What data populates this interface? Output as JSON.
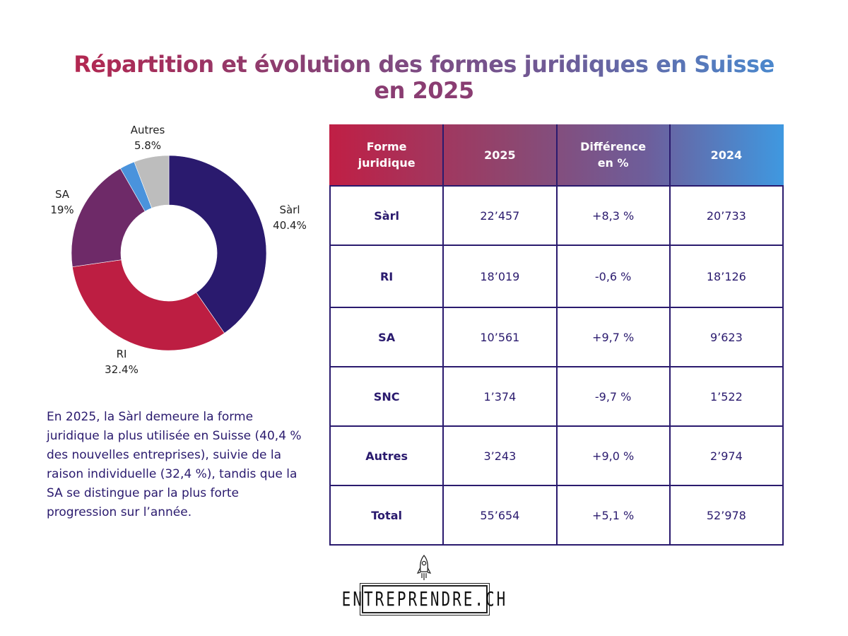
{
  "title": {
    "line1": "Répartition et évolution des formes juridiques en Suisse",
    "line2": "en 2025"
  },
  "colors": {
    "sarl": "#2a1a6e",
    "ri": "#bd1e42",
    "sa": "#6e2a68",
    "snc": "#4a93dc",
    "autres": "#bdbdbd",
    "text_primary": "#2a1a6e",
    "header_gradient_start": "#c01f45",
    "header_gradient_end": "#3f98e0"
  },
  "chart_data": {
    "type": "pie",
    "subtype": "donut",
    "title": "Répartition des formes juridiques en Suisse en 2025",
    "start": "top",
    "direction": "clockwise",
    "slices": [
      {
        "key": "sarl",
        "label": "Sàrl",
        "value": 40.4,
        "display": "40.4%",
        "labeled": true
      },
      {
        "key": "ri",
        "label": "RI",
        "value": 32.4,
        "display": "32.4%",
        "labeled": true
      },
      {
        "key": "sa",
        "label": "SA",
        "value": 19.0,
        "display": "19%",
        "labeled": true
      },
      {
        "key": "snc",
        "label": "SNC",
        "value": 2.5,
        "display": "",
        "labeled": false
      },
      {
        "key": "autres",
        "label": "Autres",
        "value": 5.8,
        "display": "5.8%",
        "labeled": true
      }
    ]
  },
  "summary": "En 2025, la Sàrl demeure la forme juridique la plus utilisée en Suisse (40,4 % des nouvelles entreprises), suivie de la raison individuelle (32,4 %), tandis que la SA se distingue par la plus forte progression sur l’année.",
  "table": {
    "headers": [
      "Forme juridique",
      "2025",
      "Différence en %",
      "2024"
    ],
    "rows": [
      {
        "forme": "Sàrl",
        "y2025": "22’457",
        "diff": "+8,3 %",
        "y2024": "20’733"
      },
      {
        "forme": "RI",
        "y2025": "18’019",
        "diff": "-0,6 %",
        "y2024": "18’126"
      },
      {
        "forme": "SA",
        "y2025": "10’561",
        "diff": "+9,7 %",
        "y2024": "9’623"
      },
      {
        "forme": "SNC",
        "y2025": "1’374",
        "diff": "-9,7 %",
        "y2024": "1’522"
      },
      {
        "forme": "Autres",
        "y2025": "3’243",
        "diff": "+9,0 %",
        "y2024": "2’974"
      },
      {
        "forme": "Total",
        "y2025": "55’654",
        "diff": "+5,1 %",
        "y2024": "52’978"
      }
    ]
  },
  "logo": {
    "text": "ENTREPRENDRE.CH",
    "icon": "rocket-icon"
  }
}
